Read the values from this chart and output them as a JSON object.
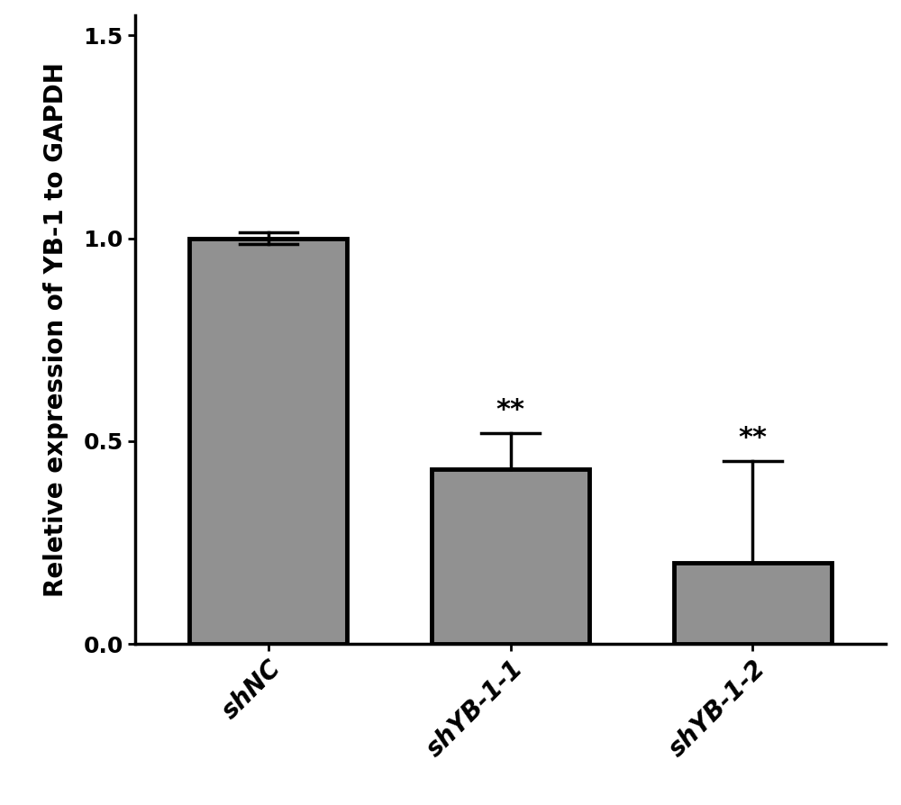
{
  "categories": [
    "shNC",
    "shYB-1-1",
    "shYB-1-2"
  ],
  "values": [
    1.0,
    0.43,
    0.2
  ],
  "errors_up": [
    0.015,
    0.09,
    0.25
  ],
  "errors_down": [
    0.015,
    0.0,
    0.0
  ],
  "bar_color": "#919191",
  "bar_edgecolor": "#000000",
  "bar_linewidth": 3.5,
  "ylabel": "Reletive expression of YB-1 to GAPDH",
  "ylim": [
    0,
    1.55
  ],
  "yticks": [
    0.0,
    0.5,
    1.0,
    1.5
  ],
  "significance": [
    "",
    "**",
    "**"
  ],
  "sig_fontsize": 22,
  "ylabel_fontsize": 20,
  "tick_fontsize": 18,
  "xtick_fontsize": 20,
  "background_color": "#ffffff",
  "bar_width": 0.65,
  "capsize": 12,
  "elinewidth": 2.5,
  "ecapthick": 2.5,
  "spine_linewidth": 2.5
}
